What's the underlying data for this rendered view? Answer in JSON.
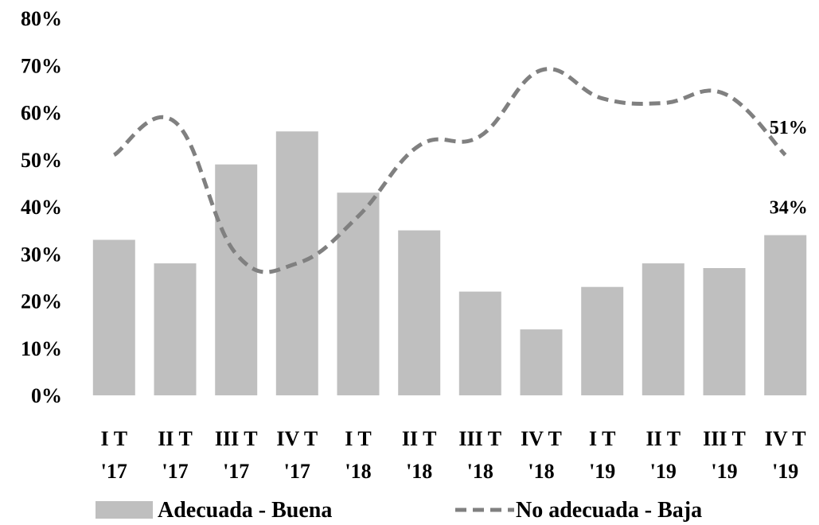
{
  "chart_data": {
    "type": "bar",
    "categories": [
      [
        "I T",
        "'17"
      ],
      [
        "II T",
        "'17"
      ],
      [
        "III T",
        "'17"
      ],
      [
        "IV T",
        "'17"
      ],
      [
        "I T",
        "'18"
      ],
      [
        "II T",
        "'18"
      ],
      [
        "III T",
        "'18"
      ],
      [
        "IV T",
        "'18"
      ],
      [
        "I T",
        "'19"
      ],
      [
        "II T",
        "'19"
      ],
      [
        "III T",
        "'19"
      ],
      [
        "IV T",
        "'19"
      ]
    ],
    "series": [
      {
        "name": "Adecuada - Buena",
        "type": "bar",
        "color": "#bfbfbf",
        "values": [
          33,
          28,
          49,
          56,
          43,
          35,
          22,
          14,
          23,
          28,
          27,
          34
        ]
      },
      {
        "name": "No adecuada - Baja",
        "type": "line",
        "style": "dashed",
        "color": "#808080",
        "values": [
          51,
          58,
          30,
          28,
          38,
          53,
          55,
          69,
          63,
          62,
          64,
          51
        ]
      }
    ],
    "data_labels": [
      {
        "series": 0,
        "index": 11,
        "text": "34%"
      },
      {
        "series": 1,
        "index": 11,
        "text": "51%"
      }
    ],
    "ylim": [
      0,
      80
    ],
    "yticks": [
      "0%",
      "10%",
      "20%",
      "30%",
      "40%",
      "50%",
      "60%",
      "70%",
      "80%"
    ],
    "ytick_values": [
      0,
      10,
      20,
      30,
      40,
      50,
      60,
      70,
      80
    ],
    "grid": false,
    "legend_position": "bottom"
  }
}
